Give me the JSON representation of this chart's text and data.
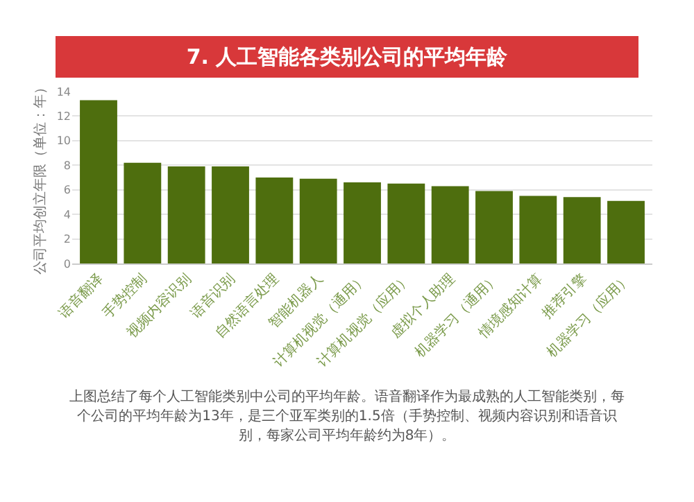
{
  "chart_data": {
    "type": "bar",
    "title": "7. 人工智能各类别公司的平均年龄",
    "ylabel": "公司平均创立年限（单位：年）",
    "categories": [
      "语音翻译",
      "手势控制",
      "视频内容识别",
      "语音识别",
      "自然语言处理",
      "智能机器人",
      "计算机视觉（通用）",
      "计算机视觉（应用）",
      "虚拟个人助理",
      "机器学习（通用）",
      "情境感知计算",
      "推荐引擎",
      "机器学习（应用）"
    ],
    "values": [
      13.3,
      8.2,
      7.9,
      7.9,
      7.0,
      6.9,
      6.6,
      6.5,
      6.3,
      5.9,
      5.5,
      5.4,
      5.1
    ],
    "color": "#4e6e0e",
    "ylim": [
      0,
      14
    ],
    "yticks": [
      0,
      2,
      4,
      6,
      8,
      10,
      12,
      14
    ],
    "grid": "y",
    "annotations": [
      "上图总结了每个人工智能类别中公司的平均年龄。语音翻译作为最成熟的人工智能类别，每个公司的平均年龄为13年，是三个亚军类别的1.5倍（手势控制、视频内容识别和语音识别，每家公司平均年龄约为8年）。"
    ]
  }
}
